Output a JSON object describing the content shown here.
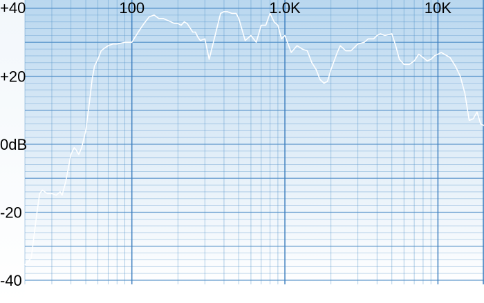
{
  "chart_data": {
    "type": "line",
    "title": "",
    "xlabel": "",
    "ylabel": "",
    "x_scale": "log",
    "xlim": [
      20,
      20000
    ],
    "ylim": [
      -40,
      40
    ],
    "grid": true,
    "legend": "none",
    "x_tick_labels": [
      {
        "value": 100,
        "label": "100"
      },
      {
        "value": 1000,
        "label": "1.0K"
      },
      {
        "value": 10000,
        "label": "10K"
      }
    ],
    "y_tick_labels": [
      {
        "value": 40,
        "label": "+40"
      },
      {
        "value": 20,
        "label": "+20"
      },
      {
        "value": 0,
        "label": "0dB"
      },
      {
        "value": -20,
        "label": "-20"
      },
      {
        "value": -40,
        "label": "-40"
      }
    ],
    "series": [
      {
        "color": "#ffffff",
        "x": [
          20,
          22,
          24,
          25,
          26,
          28,
          30,
          32,
          34,
          35,
          37,
          40,
          42,
          43,
          45,
          47,
          50,
          53,
          55,
          57,
          60,
          63,
          65,
          70,
          75,
          80,
          90,
          100,
          110,
          120,
          130,
          140,
          150,
          160,
          170,
          180,
          190,
          200,
          210,
          220,
          230,
          250,
          260,
          270,
          280,
          300,
          320,
          350,
          380,
          400,
          420,
          450,
          480,
          500,
          550,
          600,
          650,
          700,
          750,
          800,
          850,
          900,
          950,
          1000,
          1100,
          1200,
          1300,
          1400,
          1500,
          1600,
          1700,
          1800,
          1900,
          2000,
          2200,
          2300,
          2500,
          2700,
          3000,
          3300,
          3500,
          3800,
          4000,
          4200,
          4500,
          5000,
          5300,
          5600,
          6000,
          6500,
          7000,
          7500,
          8000,
          8500,
          9000,
          9500,
          10000,
          10500,
          11000,
          12000,
          13000,
          14000,
          15000,
          16000,
          17000,
          18000,
          19000,
          20000
        ],
        "y": [
          -35.5,
          -33.5,
          -20,
          -14.5,
          -13.5,
          -14.5,
          -14.5,
          -15,
          -14,
          -15,
          -11,
          -3,
          -1,
          -1.5,
          -3,
          -1,
          4,
          13,
          19,
          23,
          25,
          27.5,
          28,
          29,
          29.5,
          29.5,
          30,
          30,
          33,
          35.5,
          37.5,
          38,
          37,
          37,
          36.5,
          36,
          35.5,
          35.5,
          35,
          36,
          35.5,
          33,
          33,
          31.5,
          30.5,
          31,
          25,
          32,
          38.5,
          39,
          39,
          38.5,
          38.5,
          37,
          30.5,
          32,
          30,
          35,
          35,
          38.5,
          36,
          35,
          31,
          32,
          27,
          29,
          28,
          27.5,
          24,
          22,
          19,
          18,
          18.5,
          22,
          27,
          29,
          27.5,
          27.5,
          29.5,
          30,
          31,
          31,
          32,
          32.5,
          32,
          32.5,
          29,
          25,
          23.5,
          23.5,
          24.5,
          26.5,
          25.5,
          24.5,
          25,
          26,
          26.5,
          27,
          26.5,
          25.5,
          23,
          20,
          15,
          7,
          7.5,
          9.5,
          6,
          5.5
        ]
      }
    ]
  }
}
